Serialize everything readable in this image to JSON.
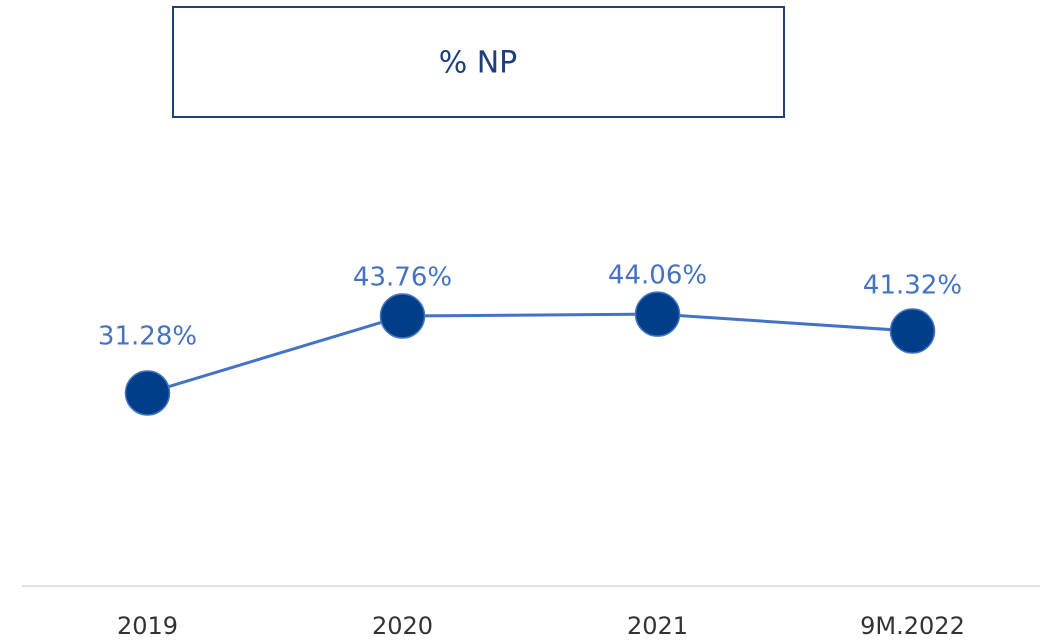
{
  "chart_data": {
    "type": "line",
    "title": "% NP",
    "categories": [
      "2019",
      "2020",
      "2021",
      "9M.2022"
    ],
    "values": [
      31.28,
      43.76,
      44.06,
      41.32
    ],
    "value_labels": [
      "31.28%",
      "43.76%",
      "44.06%",
      "41.32%"
    ],
    "color": "#4472c4",
    "marker_color": "#003f87"
  }
}
